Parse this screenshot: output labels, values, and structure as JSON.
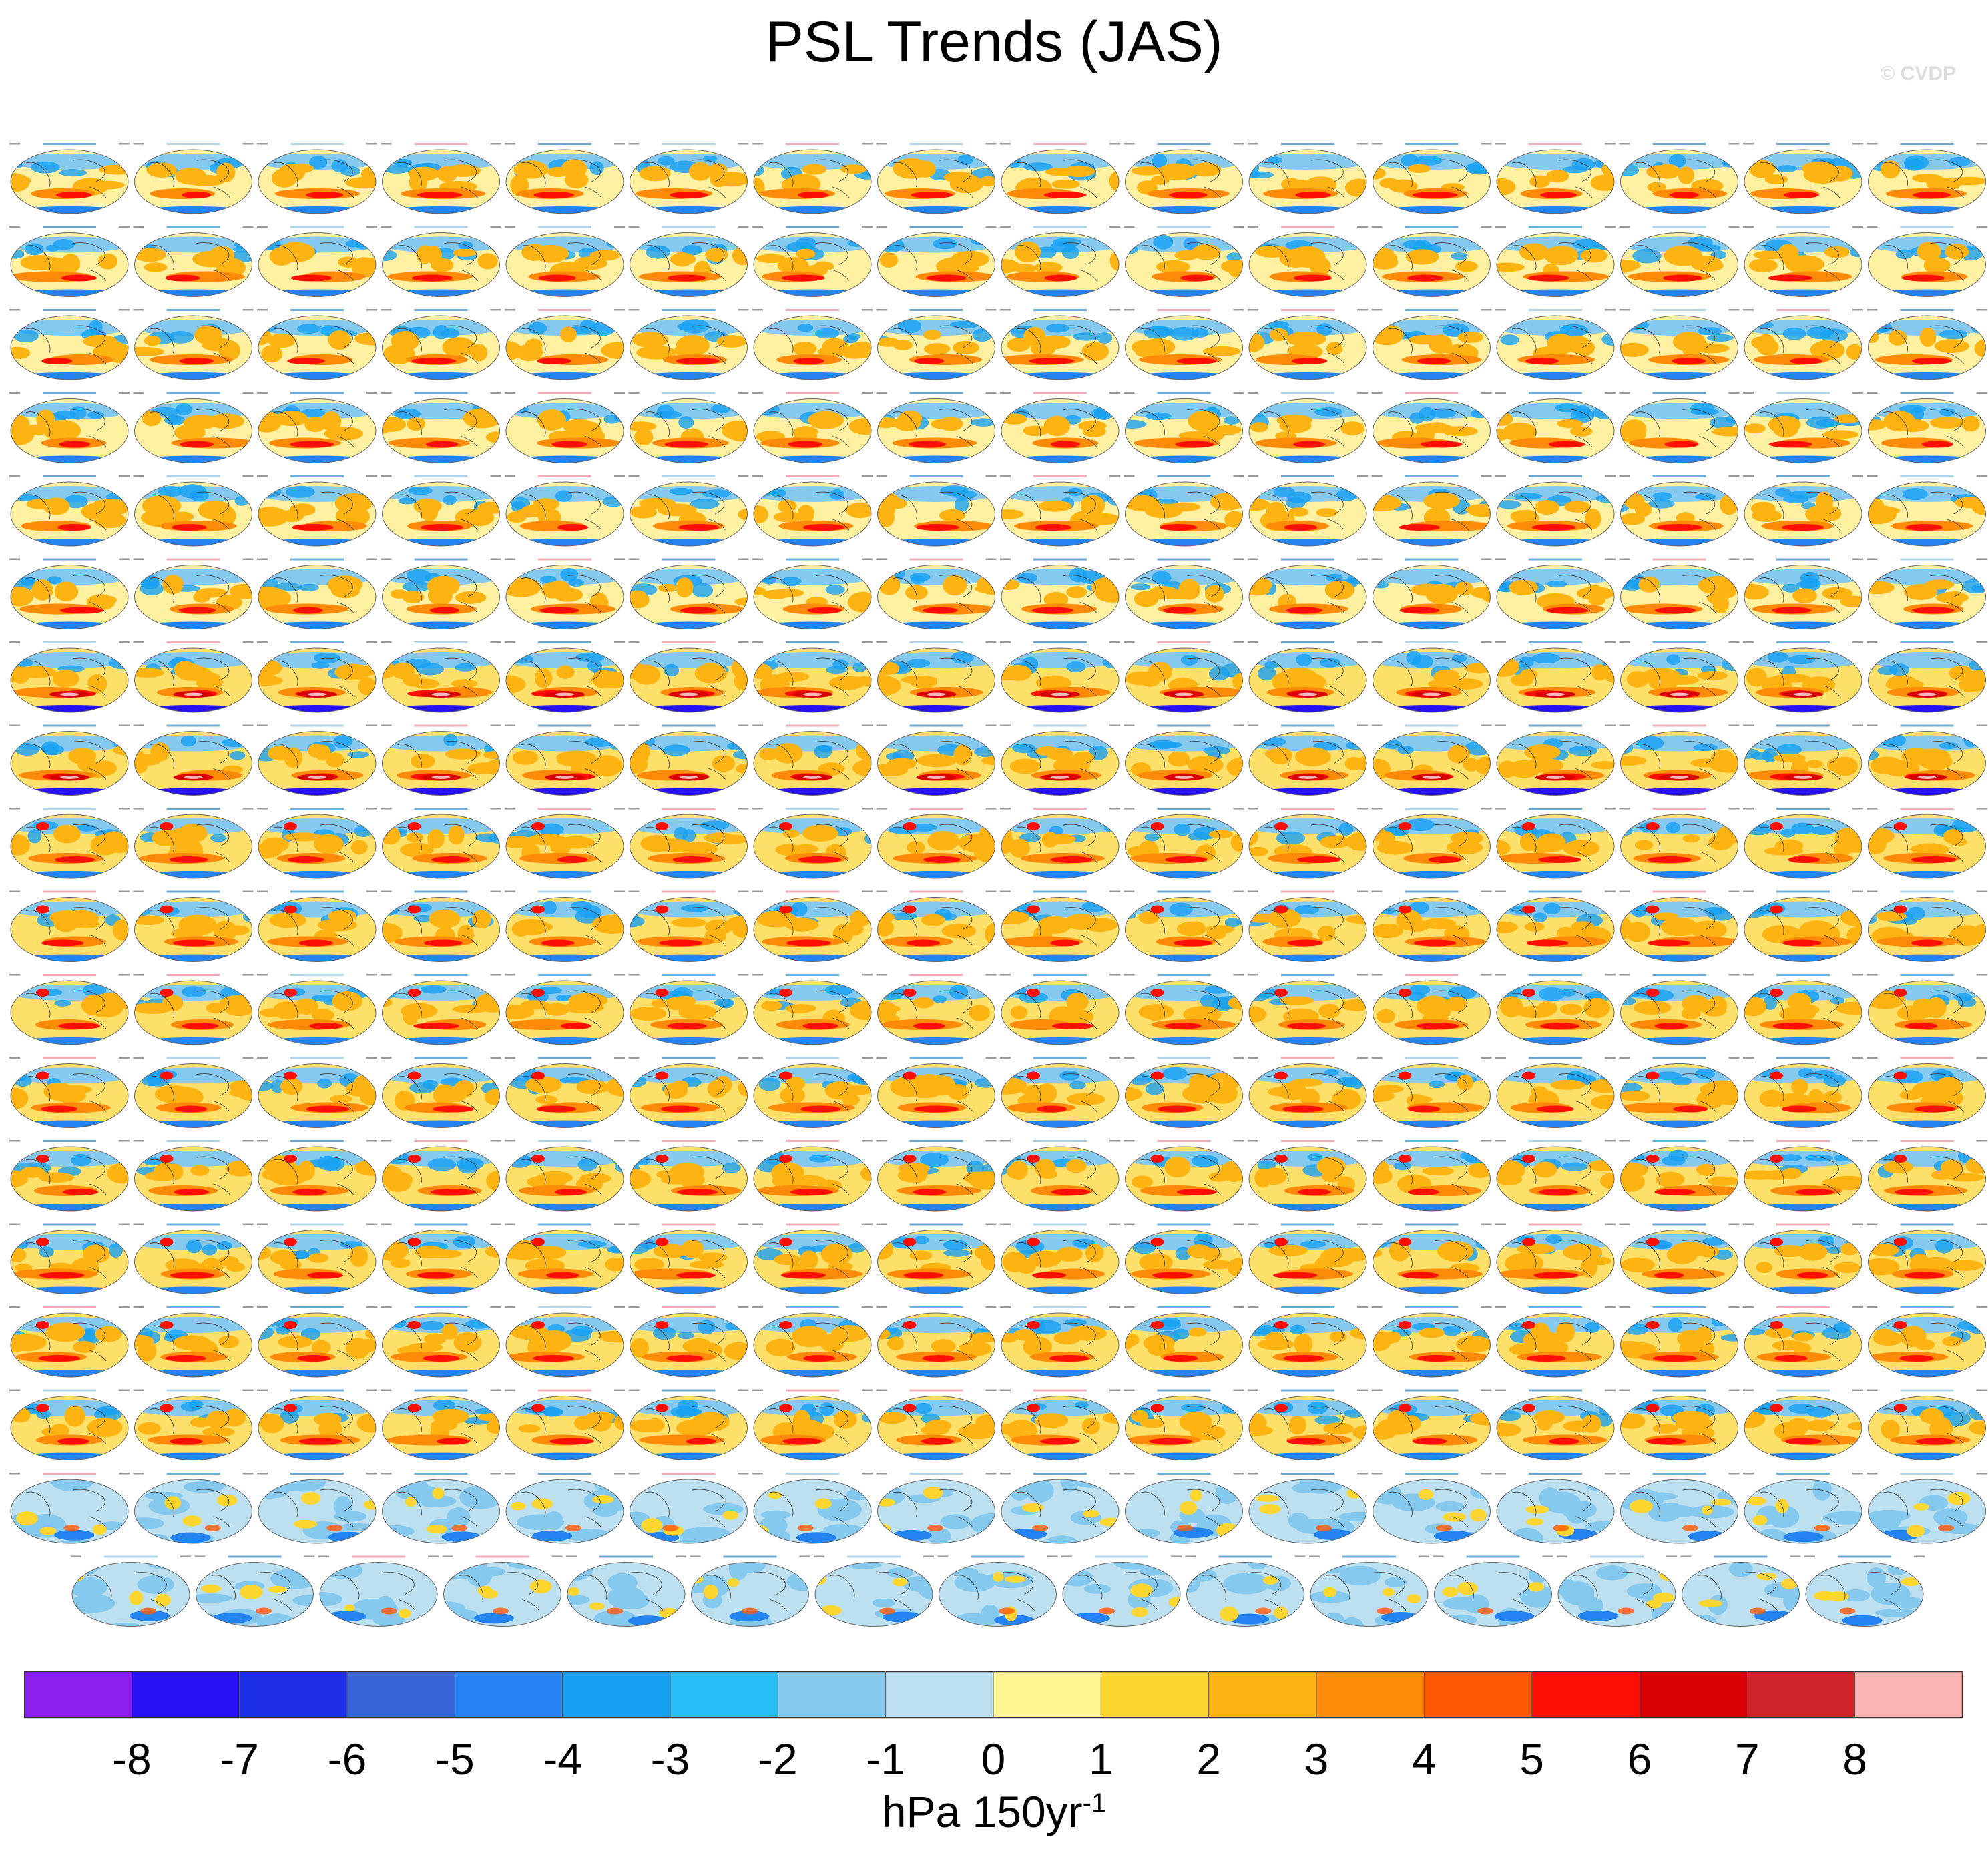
{
  "figure": {
    "title": "PSL Trends (JAS)",
    "watermark": "© CVDP",
    "units": {
      "base": "hPa 150yr",
      "superscript": "-1"
    }
  },
  "chart_data": {
    "type": "heatmap",
    "title": "PSL Trends (JAS)",
    "description_kind": "grid of ensemble-member global map panels sharing one colorbar",
    "panel_grid": {
      "columns": 16,
      "full_rows": 17,
      "last_row_panels": 15,
      "total_panels": 287
    },
    "colorbar": {
      "orientation": "horizontal",
      "tick_labels": [
        "-8",
        "-7",
        "-6",
        "-5",
        "-4",
        "-3",
        "-2",
        "-1",
        "0",
        "1",
        "2",
        "3",
        "4",
        "5",
        "6",
        "7",
        "8"
      ],
      "bin_colors": [
        "#8a1ff0",
        "#2710f5",
        "#1b2ee6",
        "#3464d8",
        "#2383f0",
        "#17a0f2",
        "#26bdf5",
        "#86c9ee",
        "#bde0f0",
        "#fdf58f",
        "#fdd62f",
        "#fdb312",
        "#fd8a08",
        "#fe5a06",
        "#fe0f05",
        "#d80005",
        "#cf2329",
        "#fcb3b3"
      ],
      "units": "hPa 150yr-1"
    },
    "panel_label_colors": {
      "ACCESS-ESM1-5": "#2f7fb8",
      "CanESM5": "#8fc3e0",
      "CESM1": "#2f8fd0",
      "CESM2": "#e88a9a"
    },
    "panel_themes": [
      {
        "rows": [
          0,
          5
        ],
        "style": "warm-and-blue-mix"
      },
      {
        "rows": [
          6,
          7
        ],
        "style": "strong-red-south-blue-rim"
      },
      {
        "rows": [
          8,
          15
        ],
        "style": "warm-dominant"
      },
      {
        "rows": [
          16,
          17
        ],
        "style": "blue-dominant"
      }
    ]
  }
}
